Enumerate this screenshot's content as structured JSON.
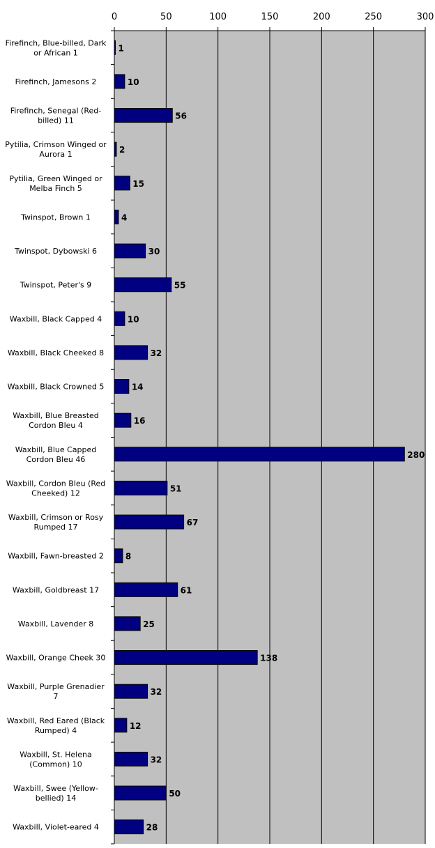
{
  "chart_data": {
    "type": "bar",
    "orientation": "horizontal",
    "title": "",
    "xlabel": "",
    "ylabel": "",
    "xlim": [
      0,
      300
    ],
    "x_ticks": [
      "0",
      "50",
      "100",
      "150",
      "200",
      "250",
      "300"
    ],
    "grid": true,
    "legend": "none",
    "plot_background": "#C0C0C0",
    "bar_color": "#000080",
    "categories": [
      [
        "Firefinch, Blue-billed, Dark",
        "or African  1"
      ],
      [
        "Firefinch, Jamesons  2"
      ],
      [
        "Firefinch, Senegal (Red-",
        "billed)  11"
      ],
      [
        "Pytilia, Crimson Winged or",
        "Aurora 1"
      ],
      [
        "Pytilia, Green Winged or",
        "Melba Finch  5"
      ],
      [
        "Twinspot, Brown  1"
      ],
      [
        "Twinspot, Dybowski  6"
      ],
      [
        "Twinspot, Peter's  9"
      ],
      [
        "Waxbill, Black Capped  4"
      ],
      [
        "Waxbill, Black Cheeked  8"
      ],
      [
        "Waxbill, Black Crowned  5"
      ],
      [
        "Waxbill, Blue Breasted",
        "Cordon Bleu 4"
      ],
      [
        "Waxbill, Blue Capped",
        "Cordon Bleu  46"
      ],
      [
        "Waxbill, Cordon Bleu (Red",
        "Cheeked)  12"
      ],
      [
        "Waxbill, Crimson or Rosy",
        "Rumped  17"
      ],
      [
        "Waxbill, Fawn-breasted  2"
      ],
      [
        "Waxbill, Goldbreast  17"
      ],
      [
        "Waxbill, Lavender  8"
      ],
      [
        "Waxbill, Orange Cheek  30"
      ],
      [
        "Waxbill, Purple Grenadier",
        "7"
      ],
      [
        "Waxbill, Red Eared (Black",
        "Rumped)  4"
      ],
      [
        "Waxbill, St. Helena",
        "(Common)  10"
      ],
      [
        "Waxbill, Swee (Yellow-",
        "bellied)  14"
      ],
      [
        "Waxbill, Violet-eared  4"
      ]
    ],
    "values": [
      1,
      10,
      56,
      2,
      15,
      4,
      30,
      55,
      10,
      32,
      14,
      16,
      280,
      51,
      67,
      8,
      61,
      25,
      138,
      32,
      12,
      32,
      50,
      28
    ],
    "value_labels": [
      "1",
      "10",
      "56",
      "2",
      "15",
      "4",
      "30",
      "55",
      "10",
      "32",
      "14",
      "16",
      "280",
      "51",
      "67",
      "8",
      "61",
      "25",
      "138",
      "32",
      "12",
      "32",
      "50",
      "28"
    ]
  }
}
